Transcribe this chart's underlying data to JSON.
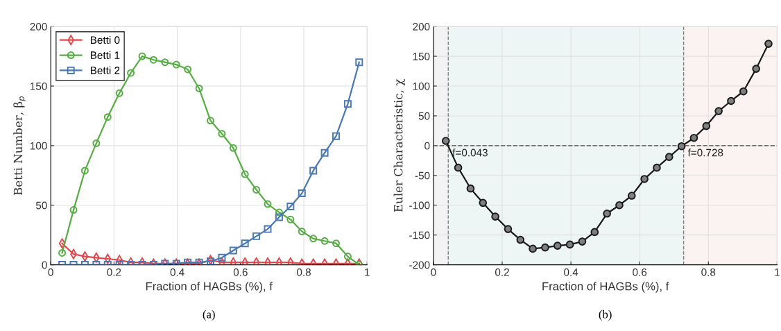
{
  "chart_data": [
    {
      "type": "line",
      "xlabel": "Fraction of HAGBs (%), f",
      "ylabel": "Betti Number, β$_{p}$",
      "xlim": [
        0,
        1
      ],
      "ylim": [
        0,
        200
      ],
      "xticks": [
        0,
        0.2,
        0.4,
        0.6,
        0.8,
        1
      ],
      "yticks": [
        0,
        50,
        100,
        150,
        200
      ],
      "grid": true,
      "legend": "top left",
      "annotations": [
        "(a)"
      ],
      "x": [
        0.036,
        0.072,
        0.108,
        0.144,
        0.18,
        0.217,
        0.253,
        0.289,
        0.325,
        0.361,
        0.397,
        0.433,
        0.469,
        0.505,
        0.541,
        0.577,
        0.614,
        0.65,
        0.686,
        0.722,
        0.758,
        0.794,
        0.83,
        0.866,
        0.902,
        0.939,
        0.975
      ],
      "series": [
        {
          "name": "Betti 0",
          "color": "#e2474d",
          "marker": "diamond",
          "values": [
            18,
            9,
            7,
            6,
            5,
            4,
            2,
            2,
            1,
            1,
            1,
            1,
            1,
            4,
            2,
            2,
            2,
            2,
            2,
            2,
            2,
            1,
            1,
            1,
            1,
            1,
            1
          ]
        },
        {
          "name": "Betti 1",
          "color": "#56ad44",
          "marker": "circle",
          "values": [
            10,
            46,
            79,
            102,
            124,
            144,
            161,
            175,
            172,
            170,
            168,
            164,
            148,
            121,
            110,
            98,
            76,
            63,
            51,
            44,
            38,
            28,
            22,
            20,
            18,
            7,
            0
          ]
        },
        {
          "name": "Betti 2",
          "color": "#4a78b2",
          "marker": "square",
          "values": [
            0,
            0,
            0,
            0,
            0,
            0,
            0,
            0,
            0,
            1,
            1,
            2,
            2,
            3,
            6,
            12,
            18,
            24,
            30,
            40,
            49,
            60,
            79,
            94,
            108,
            135,
            170
          ]
        }
      ]
    },
    {
      "type": "line",
      "xlabel": "Fraction of HAGBs (%), f",
      "ylabel": "Euler Characteristic, χ",
      "xlim": [
        0,
        1
      ],
      "ylim": [
        -200,
        200
      ],
      "xticks": [
        0,
        0.2,
        0.4,
        0.6,
        0.8,
        1
      ],
      "yticks": [
        -200,
        -150,
        -100,
        -50,
        0,
        50,
        100,
        150,
        200
      ],
      "grid": true,
      "annotations": [
        "(b)"
      ],
      "x": [
        0.036,
        0.072,
        0.108,
        0.144,
        0.18,
        0.217,
        0.253,
        0.289,
        0.325,
        0.361,
        0.397,
        0.433,
        0.469,
        0.505,
        0.541,
        0.577,
        0.614,
        0.65,
        0.686,
        0.722,
        0.758,
        0.794,
        0.83,
        0.866,
        0.902,
        0.939,
        0.975
      ],
      "series": [
        {
          "color": "#1a1a1a",
          "marker": "circle",
          "values": [
            8,
            -37,
            -72,
            -96,
            -119,
            -140,
            -158,
            -173,
            -171,
            -168,
            -166,
            -161,
            -145,
            -114,
            -100,
            -84,
            -56,
            -37,
            -19,
            -1,
            13,
            33,
            58,
            75,
            91,
            129,
            171
          ]
        }
      ],
      "bands": [
        {
          "axis": "x",
          "from": 0,
          "to": 0.043,
          "color": "#f3f3f3"
        },
        {
          "axis": "x",
          "from": 0.043,
          "to": 0.728,
          "color": "#eef5f5"
        },
        {
          "axis": "x",
          "from": 0.728,
          "to": 1,
          "color": "#faf3f2"
        }
      ],
      "ref_lines": [
        {
          "axis": "x",
          "value": 0.043,
          "label": "f=0.043",
          "color": "#808080",
          "line_style": "dashed"
        },
        {
          "axis": "x",
          "value": 0.728,
          "label": "f=0.728",
          "color": "#808080",
          "line_style": "dashed"
        },
        {
          "axis": "y",
          "value": 0,
          "color": "#707070",
          "line_style": "dashed"
        }
      ]
    }
  ]
}
